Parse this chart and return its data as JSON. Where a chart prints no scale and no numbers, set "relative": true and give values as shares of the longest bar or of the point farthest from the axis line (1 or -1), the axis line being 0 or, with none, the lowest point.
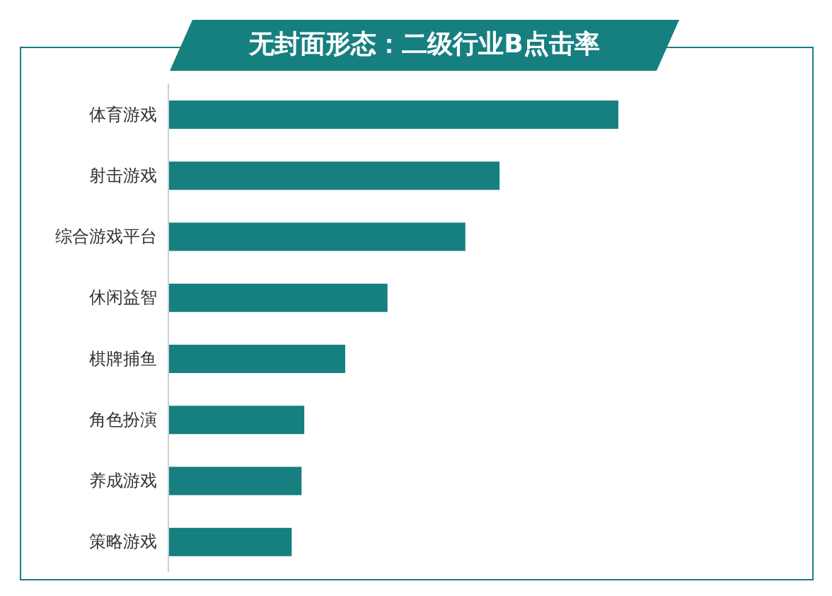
{
  "chart_data": {
    "type": "bar",
    "orientation": "horizontal",
    "relative": true,
    "title": "无封面形态：二级行业B点击率",
    "categories": [
      "体育游戏",
      "射击游戏",
      "综合游戏平台",
      "休闲益智",
      "棋牌捕鱼",
      "角色扮演",
      "养成游戏",
      "策略游戏"
    ],
    "values": [
      1,
      0.736,
      0.66,
      0.487,
      0.393,
      0.302,
      0.296,
      0.274
    ],
    "color": "#167f80"
  }
}
